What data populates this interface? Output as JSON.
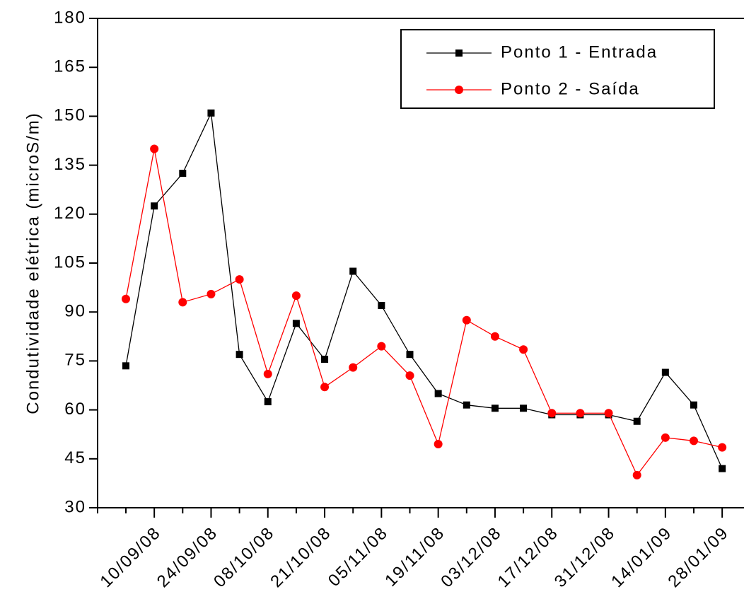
{
  "chart_data": {
    "type": "line",
    "y_label": "Condutividade elétrica (microS/m)",
    "categories": [
      null,
      "10/09/08",
      null,
      "24/09/08",
      null,
      "08/10/08",
      null,
      "21/10/08",
      null,
      "05/11/08",
      null,
      "19/11/08",
      null,
      "03/12/08",
      null,
      "17/12/08",
      null,
      "31/12/08",
      null,
      "14/01/09",
      null,
      "28/01/09"
    ],
    "series": [
      {
        "name": "Ponto 1 - Entrada",
        "color": "#000000",
        "marker": "square",
        "values": [
          73.5,
          122.5,
          132.5,
          151,
          77,
          62.5,
          86.5,
          75.5,
          102.5,
          92,
          77,
          65,
          61.5,
          60.5,
          60.5,
          58.5,
          58.5,
          58.5,
          56.5,
          71.5,
          61.5,
          42
        ]
      },
      {
        "name": "Ponto 2 - Saída",
        "color": "#ff0000",
        "marker": "circle",
        "values": [
          94,
          140,
          93,
          95.5,
          100,
          71,
          95,
          67,
          73,
          79.5,
          70.5,
          49.5,
          87.5,
          82.5,
          78.5,
          59,
          59,
          59,
          40,
          51.5,
          50.5,
          48.5
        ]
      }
    ],
    "ylim": [
      30,
      180
    ],
    "yticks": [
      30,
      45,
      60,
      75,
      90,
      105,
      120,
      135,
      150,
      165,
      180
    ],
    "legend": "top-right"
  }
}
